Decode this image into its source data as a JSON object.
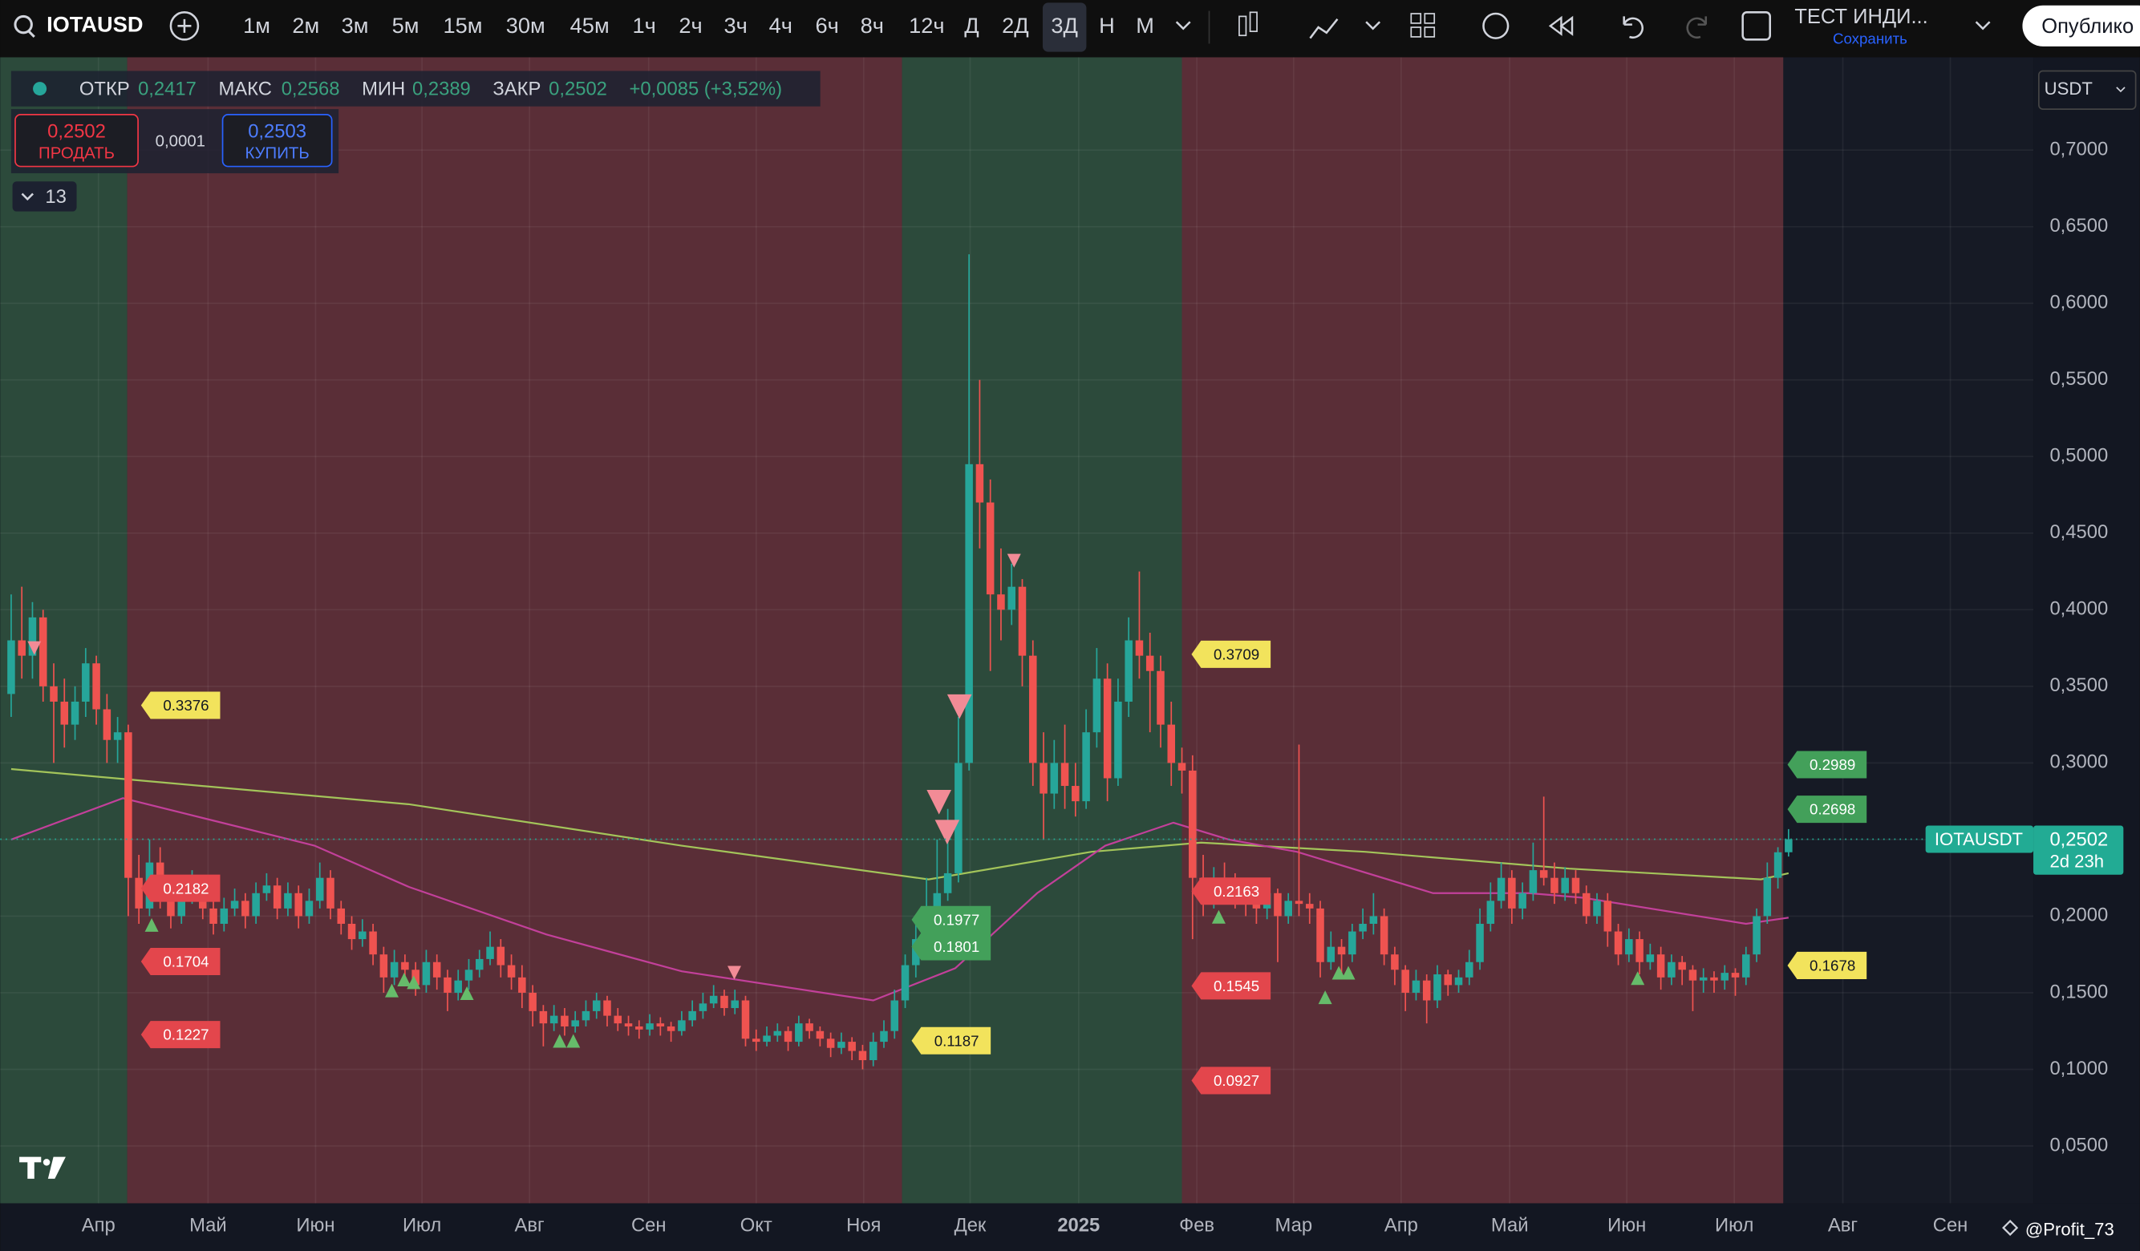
{
  "toolbar": {
    "symbol": "IOTAUSD",
    "intervals": [
      "1м",
      "2м",
      "3м",
      "5м",
      "15м",
      "30м",
      "45м",
      "1ч",
      "2ч",
      "3ч",
      "4ч",
      "6ч",
      "8ч",
      "12ч",
      "Д",
      "2Д",
      "3Д",
      "Н",
      "М"
    ],
    "selected_interval": 16,
    "layout_name": "ТЕСТ ИНДИ...",
    "save": "Сохранить",
    "publish": "Опублико"
  },
  "legend": {
    "items": [
      {
        "label": "ОТКР",
        "value": "0,2417"
      },
      {
        "label": "МАКС",
        "value": "0,2568"
      },
      {
        "label": "МИН",
        "value": "0,2389"
      },
      {
        "label": "ЗАКР",
        "value": "0,2502"
      }
    ],
    "change": "+0,0085 (+3,52%)"
  },
  "trade": {
    "sell_price": "0,2502",
    "sell": "ПРОДАТЬ",
    "spread": "0,0001",
    "buy_price": "0,2503",
    "buy": "КУПИТЬ"
  },
  "indicators_count": 13,
  "currency": "USDT",
  "watermark": "@Profit_73",
  "chart_data": {
    "type": "candlestick",
    "up_color": "#26a69a",
    "down_color": "#ef5350",
    "ylim": [
      0.0126,
      0.7579
    ],
    "yticks": [
      {
        "value": 0.7,
        "label": "0,7000"
      },
      {
        "value": 0.65,
        "label": "0,6500"
      },
      {
        "value": 0.6,
        "label": "0,6000"
      },
      {
        "value": 0.55,
        "label": "0,5500"
      },
      {
        "value": 0.5,
        "label": "0,5000"
      },
      {
        "value": 0.45,
        "label": "0,4500"
      },
      {
        "value": 0.4,
        "label": "0,4000"
      },
      {
        "value": 0.35,
        "label": "0,3500"
      },
      {
        "value": 0.3,
        "label": "0,3000"
      },
      {
        "value": 0.25,
        "label": "0,2500"
      },
      {
        "value": 0.2,
        "label": "0,2000"
      },
      {
        "value": 0.15,
        "label": "0,1500"
      },
      {
        "value": 0.1,
        "label": "0,1000"
      },
      {
        "value": 0.05,
        "label": "0,0500"
      }
    ],
    "xlim": [
      -1.03,
      190
    ],
    "xticks": [
      {
        "value": 8.2,
        "label": "Апр"
      },
      {
        "value": 18.5,
        "label": "Май"
      },
      {
        "value": 28.6,
        "label": "Июн"
      },
      {
        "value": 38.6,
        "label": "Июл"
      },
      {
        "value": 48.7,
        "label": "Авг"
      },
      {
        "value": 59.9,
        "label": "Сен"
      },
      {
        "value": 70,
        "label": "Окт"
      },
      {
        "value": 80.1,
        "label": "Ноя"
      },
      {
        "value": 90.1,
        "label": "Дек"
      },
      {
        "value": 100.3,
        "label": "2025"
      },
      {
        "value": 111.4,
        "label": "Фев"
      },
      {
        "value": 120.5,
        "label": "Мар"
      },
      {
        "value": 130.6,
        "label": "Апр"
      },
      {
        "value": 140.8,
        "label": "Май"
      },
      {
        "value": 151.8,
        "label": "Июн"
      },
      {
        "value": 161.9,
        "label": "Июл"
      },
      {
        "value": 172.1,
        "label": "Авг"
      },
      {
        "value": 182.2,
        "label": "Сен"
      }
    ],
    "zones": [
      {
        "color": "#2c4a3b",
        "start": -1.03,
        "end": 10.9
      },
      {
        "color": "#5a2e37",
        "start": 10.9,
        "end": 83.7
      },
      {
        "color": "#2c4a3b",
        "start": 83.7,
        "end": 110
      },
      {
        "color": "#5a2e37",
        "start": 110,
        "end": 166.5
      }
    ],
    "ohlc": [
      [
        0.345,
        0.41,
        0.33,
        0.38
      ],
      [
        0.38,
        0.415,
        0.355,
        0.37
      ],
      [
        0.37,
        0.405,
        0.355,
        0.395
      ],
      [
        0.395,
        0.4,
        0.34,
        0.35
      ],
      [
        0.35,
        0.365,
        0.3,
        0.34
      ],
      [
        0.34,
        0.355,
        0.31,
        0.325
      ],
      [
        0.325,
        0.35,
        0.315,
        0.34
      ],
      [
        0.34,
        0.375,
        0.33,
        0.365
      ],
      [
        0.365,
        0.37,
        0.325,
        0.335
      ],
      [
        0.335,
        0.345,
        0.3,
        0.315
      ],
      [
        0.315,
        0.33,
        0.3,
        0.32
      ],
      [
        0.32,
        0.325,
        0.2,
        0.225
      ],
      [
        0.225,
        0.24,
        0.195,
        0.205
      ],
      [
        0.205,
        0.25,
        0.2,
        0.235
      ],
      [
        0.235,
        0.245,
        0.205,
        0.215
      ],
      [
        0.215,
        0.222,
        0.192,
        0.2
      ],
      [
        0.2,
        0.225,
        0.195,
        0.215
      ],
      [
        0.215,
        0.23,
        0.208,
        0.22
      ],
      [
        0.22,
        0.226,
        0.198,
        0.205
      ],
      [
        0.205,
        0.212,
        0.188,
        0.195
      ],
      [
        0.195,
        0.212,
        0.19,
        0.205
      ],
      [
        0.205,
        0.218,
        0.2,
        0.21
      ],
      [
        0.21,
        0.215,
        0.192,
        0.2
      ],
      [
        0.2,
        0.222,
        0.195,
        0.215
      ],
      [
        0.215,
        0.228,
        0.21,
        0.22
      ],
      [
        0.22,
        0.225,
        0.198,
        0.205
      ],
      [
        0.205,
        0.222,
        0.2,
        0.215
      ],
      [
        0.215,
        0.22,
        0.192,
        0.2
      ],
      [
        0.2,
        0.218,
        0.195,
        0.21
      ],
      [
        0.21,
        0.235,
        0.205,
        0.225
      ],
      [
        0.225,
        0.23,
        0.198,
        0.205
      ],
      [
        0.205,
        0.21,
        0.188,
        0.195
      ],
      [
        0.195,
        0.2,
        0.178,
        0.185
      ],
      [
        0.185,
        0.198,
        0.18,
        0.19
      ],
      [
        0.19,
        0.195,
        0.168,
        0.175
      ],
      [
        0.175,
        0.18,
        0.15,
        0.16
      ],
      [
        0.16,
        0.178,
        0.155,
        0.17
      ],
      [
        0.17,
        0.175,
        0.158,
        0.165
      ],
      [
        0.165,
        0.17,
        0.148,
        0.155
      ],
      [
        0.155,
        0.178,
        0.15,
        0.17
      ],
      [
        0.17,
        0.175,
        0.152,
        0.16
      ],
      [
        0.16,
        0.165,
        0.138,
        0.15
      ],
      [
        0.15,
        0.165,
        0.145,
        0.158
      ],
      [
        0.158,
        0.172,
        0.152,
        0.165
      ],
      [
        0.165,
        0.178,
        0.16,
        0.172
      ],
      [
        0.172,
        0.19,
        0.168,
        0.18
      ],
      [
        0.18,
        0.185,
        0.16,
        0.168
      ],
      [
        0.168,
        0.175,
        0.152,
        0.16
      ],
      [
        0.16,
        0.168,
        0.14,
        0.15
      ],
      [
        0.15,
        0.155,
        0.128,
        0.138
      ],
      [
        0.138,
        0.142,
        0.115,
        0.13
      ],
      [
        0.13,
        0.142,
        0.125,
        0.135
      ],
      [
        0.135,
        0.14,
        0.122,
        0.128
      ],
      [
        0.128,
        0.138,
        0.124,
        0.132
      ],
      [
        0.132,
        0.145,
        0.128,
        0.138
      ],
      [
        0.138,
        0.15,
        0.133,
        0.145
      ],
      [
        0.145,
        0.148,
        0.128,
        0.135
      ],
      [
        0.135,
        0.14,
        0.125,
        0.13
      ],
      [
        0.13,
        0.135,
        0.122,
        0.128
      ],
      [
        0.128,
        0.132,
        0.12,
        0.126
      ],
      [
        0.126,
        0.136,
        0.122,
        0.13
      ],
      [
        0.13,
        0.134,
        0.122,
        0.128
      ],
      [
        0.128,
        0.131,
        0.118,
        0.125
      ],
      [
        0.125,
        0.138,
        0.122,
        0.132
      ],
      [
        0.132,
        0.145,
        0.128,
        0.138
      ],
      [
        0.138,
        0.15,
        0.133,
        0.143
      ],
      [
        0.143,
        0.155,
        0.14,
        0.148
      ],
      [
        0.148,
        0.152,
        0.135,
        0.14
      ],
      [
        0.14,
        0.152,
        0.136,
        0.145
      ],
      [
        0.145,
        0.148,
        0.115,
        0.12
      ],
      [
        0.12,
        0.126,
        0.112,
        0.118
      ],
      [
        0.118,
        0.128,
        0.115,
        0.122
      ],
      [
        0.122,
        0.13,
        0.118,
        0.125
      ],
      [
        0.125,
        0.128,
        0.112,
        0.118
      ],
      [
        0.118,
        0.135,
        0.115,
        0.13
      ],
      [
        0.13,
        0.133,
        0.12,
        0.125
      ],
      [
        0.125,
        0.128,
        0.115,
        0.12
      ],
      [
        0.12,
        0.124,
        0.108,
        0.114
      ],
      [
        0.114,
        0.124,
        0.11,
        0.118
      ],
      [
        0.118,
        0.121,
        0.106,
        0.112
      ],
      [
        0.112,
        0.116,
        0.1,
        0.106
      ],
      [
        0.106,
        0.124,
        0.102,
        0.118
      ],
      [
        0.118,
        0.132,
        0.114,
        0.125
      ],
      [
        0.125,
        0.152,
        0.12,
        0.145
      ],
      [
        0.145,
        0.175,
        0.14,
        0.168
      ],
      [
        0.168,
        0.195,
        0.16,
        0.185
      ],
      [
        0.185,
        0.225,
        0.178,
        0.2
      ],
      [
        0.2,
        0.25,
        0.195,
        0.215
      ],
      [
        0.215,
        0.27,
        0.21,
        0.228
      ],
      [
        0.228,
        0.33,
        0.222,
        0.3
      ],
      [
        0.3,
        0.632,
        0.295,
        0.495
      ],
      [
        0.495,
        0.55,
        0.44,
        0.47
      ],
      [
        0.47,
        0.485,
        0.36,
        0.41
      ],
      [
        0.41,
        0.44,
        0.38,
        0.4
      ],
      [
        0.4,
        0.43,
        0.39,
        0.415
      ],
      [
        0.415,
        0.42,
        0.35,
        0.37
      ],
      [
        0.37,
        0.38,
        0.285,
        0.3
      ],
      [
        0.3,
        0.32,
        0.25,
        0.28
      ],
      [
        0.28,
        0.315,
        0.27,
        0.3
      ],
      [
        0.3,
        0.325,
        0.27,
        0.285
      ],
      [
        0.285,
        0.3,
        0.265,
        0.275
      ],
      [
        0.275,
        0.335,
        0.27,
        0.32
      ],
      [
        0.32,
        0.375,
        0.31,
        0.355
      ],
      [
        0.355,
        0.365,
        0.275,
        0.29
      ],
      [
        0.29,
        0.355,
        0.285,
        0.34
      ],
      [
        0.34,
        0.395,
        0.33,
        0.38
      ],
      [
        0.38,
        0.425,
        0.355,
        0.37
      ],
      [
        0.37,
        0.385,
        0.32,
        0.36
      ],
      [
        0.36,
        0.37,
        0.31,
        0.325
      ],
      [
        0.325,
        0.34,
        0.285,
        0.3
      ],
      [
        0.3,
        0.31,
        0.28,
        0.295
      ],
      [
        0.295,
        0.305,
        0.185,
        0.225
      ],
      [
        0.225,
        0.24,
        0.2,
        0.21
      ],
      [
        0.21,
        0.232,
        0.205,
        0.225
      ],
      [
        0.225,
        0.235,
        0.212,
        0.22
      ],
      [
        0.22,
        0.228,
        0.205,
        0.215
      ],
      [
        0.215,
        0.222,
        0.2,
        0.21
      ],
      [
        0.21,
        0.215,
        0.195,
        0.205
      ],
      [
        0.205,
        0.222,
        0.198,
        0.215
      ],
      [
        0.215,
        0.218,
        0.17,
        0.2
      ],
      [
        0.2,
        0.215,
        0.195,
        0.21
      ],
      [
        0.21,
        0.312,
        0.2,
        0.208
      ],
      [
        0.208,
        0.215,
        0.195,
        0.205
      ],
      [
        0.205,
        0.21,
        0.16,
        0.17
      ],
      [
        0.17,
        0.19,
        0.165,
        0.18
      ],
      [
        0.18,
        0.185,
        0.162,
        0.175
      ],
      [
        0.175,
        0.195,
        0.17,
        0.19
      ],
      [
        0.19,
        0.205,
        0.185,
        0.195
      ],
      [
        0.195,
        0.215,
        0.188,
        0.2
      ],
      [
        0.2,
        0.205,
        0.168,
        0.175
      ],
      [
        0.175,
        0.18,
        0.155,
        0.165
      ],
      [
        0.165,
        0.168,
        0.138,
        0.15
      ],
      [
        0.15,
        0.165,
        0.145,
        0.158
      ],
      [
        0.158,
        0.162,
        0.13,
        0.145
      ],
      [
        0.145,
        0.168,
        0.14,
        0.162
      ],
      [
        0.162,
        0.165,
        0.148,
        0.155
      ],
      [
        0.155,
        0.165,
        0.15,
        0.16
      ],
      [
        0.16,
        0.178,
        0.155,
        0.17
      ],
      [
        0.17,
        0.205,
        0.165,
        0.195
      ],
      [
        0.195,
        0.222,
        0.19,
        0.21
      ],
      [
        0.21,
        0.235,
        0.205,
        0.225
      ],
      [
        0.225,
        0.23,
        0.195,
        0.205
      ],
      [
        0.205,
        0.222,
        0.198,
        0.215
      ],
      [
        0.215,
        0.248,
        0.21,
        0.23
      ],
      [
        0.23,
        0.278,
        0.22,
        0.225
      ],
      [
        0.225,
        0.235,
        0.208,
        0.215
      ],
      [
        0.215,
        0.232,
        0.21,
        0.225
      ],
      [
        0.225,
        0.23,
        0.208,
        0.215
      ],
      [
        0.215,
        0.22,
        0.195,
        0.2
      ],
      [
        0.2,
        0.215,
        0.195,
        0.21
      ],
      [
        0.21,
        0.215,
        0.18,
        0.19
      ],
      [
        0.19,
        0.195,
        0.168,
        0.175
      ],
      [
        0.175,
        0.192,
        0.17,
        0.185
      ],
      [
        0.185,
        0.19,
        0.162,
        0.17
      ],
      [
        0.17,
        0.182,
        0.165,
        0.175
      ],
      [
        0.175,
        0.18,
        0.152,
        0.16
      ],
      [
        0.16,
        0.175,
        0.155,
        0.17
      ],
      [
        0.17,
        0.174,
        0.155,
        0.165
      ],
      [
        0.165,
        0.168,
        0.138,
        0.158
      ],
      [
        0.158,
        0.166,
        0.15,
        0.16
      ],
      [
        0.16,
        0.164,
        0.15,
        0.158
      ],
      [
        0.158,
        0.168,
        0.152,
        0.163
      ],
      [
        0.163,
        0.166,
        0.148,
        0.16
      ],
      [
        0.16,
        0.18,
        0.155,
        0.175
      ],
      [
        0.175,
        0.205,
        0.17,
        0.2
      ],
      [
        0.2,
        0.235,
        0.195,
        0.225
      ],
      [
        0.225,
        0.245,
        0.218,
        0.2417
      ],
      [
        0.2417,
        0.2568,
        0.2389,
        0.2502
      ]
    ],
    "moving_averages": [
      {
        "color": "#a3c45a",
        "x": [
          0,
          37.4,
          63,
          86.2,
          101.5,
          111.8,
          127.2,
          146.4,
          164.4,
          167
        ],
        "values": [
          0.296,
          0.273,
          0.246,
          0.224,
          0.242,
          0.248,
          0.242,
          0.231,
          0.224,
          0.228
        ]
      },
      {
        "color": "#c2409a",
        "x": [
          0,
          10.5,
          28.5,
          37.4,
          50.3,
          63,
          81,
          88.7,
          96.4,
          102.8,
          109.2,
          114.4,
          120.8,
          133.6,
          142.6,
          147.7,
          163,
          167
        ],
        "values": [
          0.25,
          0.277,
          0.246,
          0.219,
          0.188,
          0.164,
          0.145,
          0.166,
          0.215,
          0.246,
          0.261,
          0.25,
          0.242,
          0.215,
          0.215,
          0.212,
          0.195,
          0.199
        ]
      }
    ],
    "price_tags": [
      {
        "value": 0.3376,
        "color": "#f2e35c",
        "x": 12.2
      },
      {
        "value": 0.2182,
        "color": "#e3464c",
        "x": 12.2
      },
      {
        "value": 0.1704,
        "color": "#e3464c",
        "x": 12.2
      },
      {
        "value": 0.1227,
        "color": "#e3464c",
        "x": 12.2
      },
      {
        "value": 0.1977,
        "color": "#43a05a",
        "x": 84.6
      },
      {
        "value": 0.1801,
        "color": "#43a05a",
        "x": 84.6
      },
      {
        "value": 0.1187,
        "color": "#f2e35c",
        "x": 84.6
      },
      {
        "value": 0.3709,
        "color": "#f2e35c",
        "x": 110.9
      },
      {
        "value": 0.2163,
        "color": "#e3464c",
        "x": 110.9
      },
      {
        "value": 0.1545,
        "color": "#e3464c",
        "x": 110.9
      },
      {
        "value": 0.0927,
        "color": "#e3464c",
        "x": 110.9
      },
      {
        "value": 0.2989,
        "color": "#43a05a",
        "x": 166.9
      },
      {
        "value": 0.2698,
        "color": "#43a05a",
        "x": 166.9
      },
      {
        "value": 0.1678,
        "color": "#f2e35c",
        "x": 166.9
      }
    ],
    "last_price": {
      "value": 0.2502,
      "label": "0,2502",
      "symbol": "IOTAUSDT",
      "countdown": "2d 23h",
      "color": "#22ab94"
    }
  }
}
